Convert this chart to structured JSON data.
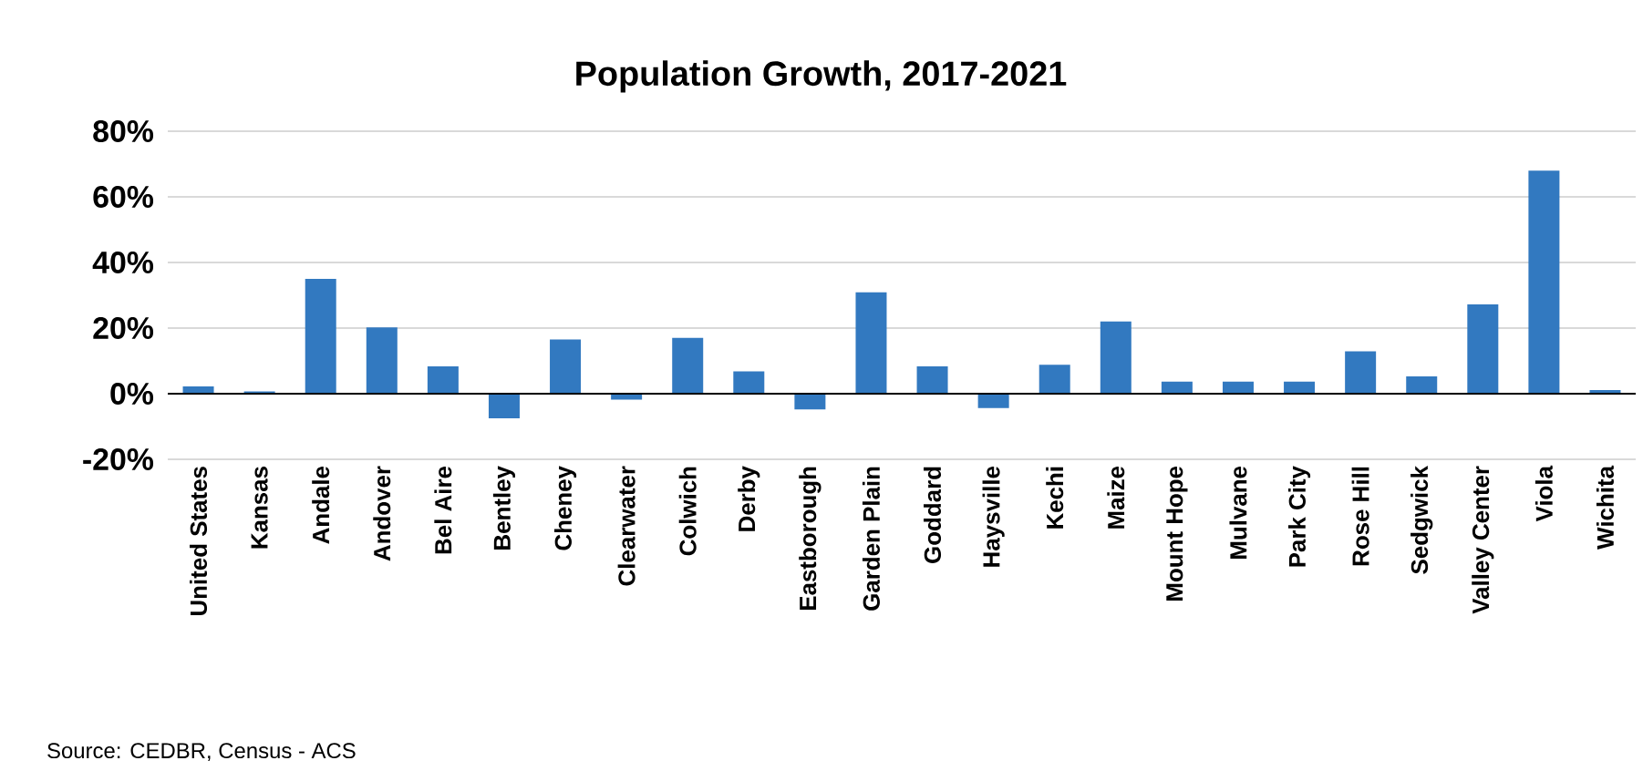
{
  "chart_data": {
    "type": "bar",
    "title": "Population Growth, 2017-2021",
    "categories": [
      "United States",
      "Kansas",
      "Andale",
      "Andover",
      "Bel Aire",
      "Bentley",
      "Cheney",
      "Clearwater",
      "Colwich",
      "Derby",
      "Eastborough",
      "Garden Plain",
      "Goddard",
      "Haysville",
      "Kechi",
      "Maize",
      "Mount Hope",
      "Mulvane",
      "Park City",
      "Rose Hill",
      "Sedgwick",
      "Valley Center",
      "Viola",
      "Wichita"
    ],
    "values": [
      2.2,
      0.7,
      35,
      20.2,
      8.3,
      -7.5,
      16.5,
      -1.8,
      17,
      6.8,
      -4.8,
      30.9,
      8.3,
      -4.4,
      8.8,
      22,
      3.7,
      3.7,
      3.7,
      12.9,
      5.3,
      27.2,
      68,
      1.1
    ],
    "color": "#3279c0",
    "ylim": [
      -20,
      80
    ],
    "yticks": [
      {
        "value": -20,
        "label": "-20%"
      },
      {
        "value": 0,
        "label": "0%"
      },
      {
        "value": 20,
        "label": "20%"
      },
      {
        "value": 40,
        "label": "40%"
      },
      {
        "value": 60,
        "label": "60%"
      },
      {
        "value": 80,
        "label": "80%"
      }
    ],
    "grid": "y",
    "annotations": [
      "Source: CEDBR, Census - ACS"
    ]
  }
}
